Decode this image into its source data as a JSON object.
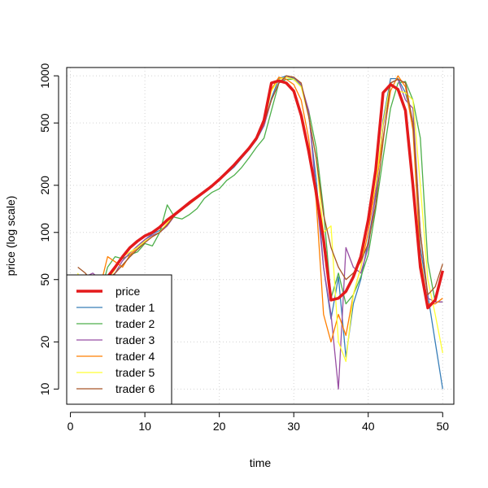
{
  "chart_data": {
    "type": "line",
    "xlabel": "time",
    "ylabel": "price (log scale)",
    "xlim": [
      -0.5,
      51.5
    ],
    "ylim": [
      8,
      1130
    ],
    "y_scale": "log",
    "grid": true,
    "legend_position": "bottom-left",
    "x_ticks": [
      0,
      10,
      20,
      30,
      40,
      50
    ],
    "y_ticks": [
      10,
      20,
      50,
      100,
      200,
      500,
      1000
    ],
    "x": [
      1,
      2,
      3,
      4,
      5,
      6,
      7,
      8,
      9,
      10,
      11,
      12,
      13,
      14,
      15,
      16,
      17,
      18,
      19,
      20,
      21,
      22,
      23,
      24,
      25,
      26,
      27,
      28,
      29,
      30,
      31,
      32,
      33,
      34,
      35,
      36,
      37,
      38,
      39,
      40,
      41,
      42,
      43,
      44,
      45,
      46,
      47,
      48,
      49,
      50
    ],
    "series": [
      {
        "name": "price",
        "color": "#e41a1c",
        "width": 3.5,
        "values": [
          44,
          44,
          44,
          44,
          52,
          60,
          70,
          80,
          88,
          95,
          100,
          108,
          120,
          130,
          142,
          155,
          168,
          182,
          198,
          218,
          242,
          270,
          305,
          345,
          400,
          520,
          900,
          930,
          900,
          800,
          560,
          330,
          180,
          90,
          37,
          38,
          42,
          52,
          70,
          120,
          250,
          780,
          880,
          820,
          600,
          200,
          60,
          33,
          37,
          57
        ]
      },
      {
        "name": "trader 1",
        "color": "#377eb8",
        "width": 1.3,
        "values": [
          50,
          50,
          40,
          45,
          48,
          55,
          62,
          70,
          78,
          90,
          98,
          103,
          112,
          128,
          140,
          152,
          166,
          180,
          195,
          215,
          238,
          262,
          298,
          338,
          390,
          480,
          720,
          960,
          1000,
          960,
          860,
          560,
          220,
          60,
          28,
          52,
          16,
          35,
          50,
          88,
          170,
          520,
          960,
          960,
          780,
          500,
          80,
          40,
          20,
          10
        ]
      },
      {
        "name": "trader 2",
        "color": "#4daf4a",
        "width": 1.3,
        "values": [
          20,
          30,
          45,
          40,
          60,
          70,
          68,
          72,
          75,
          85,
          82,
          100,
          150,
          125,
          122,
          130,
          142,
          165,
          180,
          190,
          215,
          232,
          260,
          300,
          350,
          400,
          600,
          900,
          950,
          950,
          850,
          600,
          350,
          140,
          38,
          55,
          35,
          40,
          52,
          72,
          140,
          300,
          620,
          900,
          920,
          700,
          400,
          65,
          36,
          36
        ]
      },
      {
        "name": "trader 3",
        "color": "#984ea3",
        "width": 1.3,
        "values": [
          48,
          52,
          55,
          50,
          45,
          55,
          66,
          74,
          82,
          90,
          96,
          100,
          110,
          128,
          140,
          152,
          166,
          182,
          200,
          215,
          240,
          268,
          300,
          342,
          400,
          480,
          700,
          900,
          980,
          980,
          880,
          600,
          180,
          60,
          30,
          10,
          80,
          60,
          55,
          80,
          180,
          480,
          900,
          950,
          700,
          620,
          100,
          38,
          36,
          36
        ]
      },
      {
        "name": "trader 4",
        "color": "#ff7f00",
        "width": 1.3,
        "values": [
          40,
          28,
          40,
          45,
          70,
          65,
          60,
          72,
          80,
          88,
          94,
          100,
          115,
          130,
          142,
          152,
          165,
          180,
          198,
          218,
          242,
          270,
          305,
          350,
          400,
          540,
          820,
          980,
          950,
          880,
          700,
          400,
          160,
          30,
          20,
          30,
          22,
          40,
          60,
          100,
          200,
          400,
          800,
          1000,
          850,
          450,
          70,
          35,
          35,
          38
        ]
      },
      {
        "name": "trader 5",
        "color": "#ffff33",
        "width": 1.3,
        "values": [
          55,
          30,
          30,
          40,
          50,
          58,
          70,
          75,
          80,
          88,
          94,
          100,
          115,
          130,
          142,
          152,
          166,
          182,
          198,
          218,
          242,
          270,
          305,
          350,
          400,
          500,
          800,
          950,
          980,
          950,
          850,
          550,
          300,
          100,
          110,
          20,
          15,
          40,
          60,
          120,
          200,
          500,
          900,
          800,
          780,
          700,
          200,
          50,
          30,
          17
        ]
      },
      {
        "name": "trader 6",
        "color": "#a65628",
        "width": 1.3,
        "values": [
          60,
          55,
          48,
          42,
          50,
          55,
          62,
          70,
          78,
          86,
          94,
          100,
          112,
          128,
          140,
          152,
          166,
          182,
          198,
          218,
          242,
          270,
          305,
          340,
          400,
          500,
          700,
          900,
          1000,
          980,
          900,
          550,
          300,
          130,
          80,
          60,
          50,
          55,
          65,
          85,
          150,
          380,
          900,
          950,
          900,
          500,
          100,
          40,
          45,
          63
        ]
      }
    ]
  }
}
